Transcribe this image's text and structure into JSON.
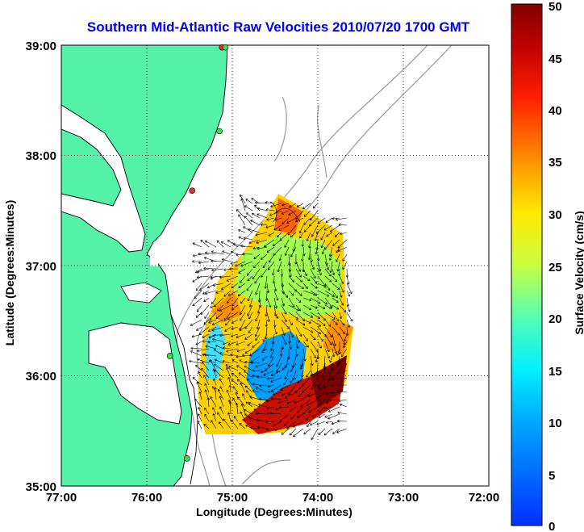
{
  "map": {
    "title": "Southern Mid-Atlantic Raw Velocities 2010/07/20 1700 GMT",
    "xlabel": "Longitude (Degrees:Minutes)",
    "ylabel": "Latitude (Degrees:Minutes)",
    "lon_ticks": [
      "77:00",
      "76:00",
      "75:00",
      "74:00",
      "73:00",
      "72:00"
    ],
    "lat_ticks": [
      "39:00",
      "38:00",
      "37:00",
      "36:00",
      "35:00"
    ],
    "lon_range": [
      -77,
      -72
    ],
    "lat_range": [
      35,
      39
    ],
    "colors": {
      "land": "#55f2aa",
      "coast": "#000000",
      "bathymetry": "#999999",
      "grid": "#000000"
    }
  },
  "colorbar": {
    "label": "Surface Velocity (cm/s)",
    "ticks": [
      "0",
      "5",
      "10",
      "15",
      "20",
      "25",
      "30",
      "35",
      "40",
      "45",
      "50"
    ],
    "range": [
      0,
      50
    ]
  },
  "stations": [
    {
      "lon": -75.12,
      "lat": 38.98,
      "color": "#ff2020"
    },
    {
      "lon": -75.08,
      "lat": 38.98,
      "color": "#33dd55"
    },
    {
      "lon": -75.15,
      "lat": 38.22,
      "color": "#33dd55"
    },
    {
      "lon": -75.47,
      "lat": 37.68,
      "color": "#dd3333"
    },
    {
      "lon": -75.73,
      "lat": 36.18,
      "color": "#33dd55"
    },
    {
      "lon": -75.53,
      "lat": 35.25,
      "color": "#33dd55"
    }
  ]
}
